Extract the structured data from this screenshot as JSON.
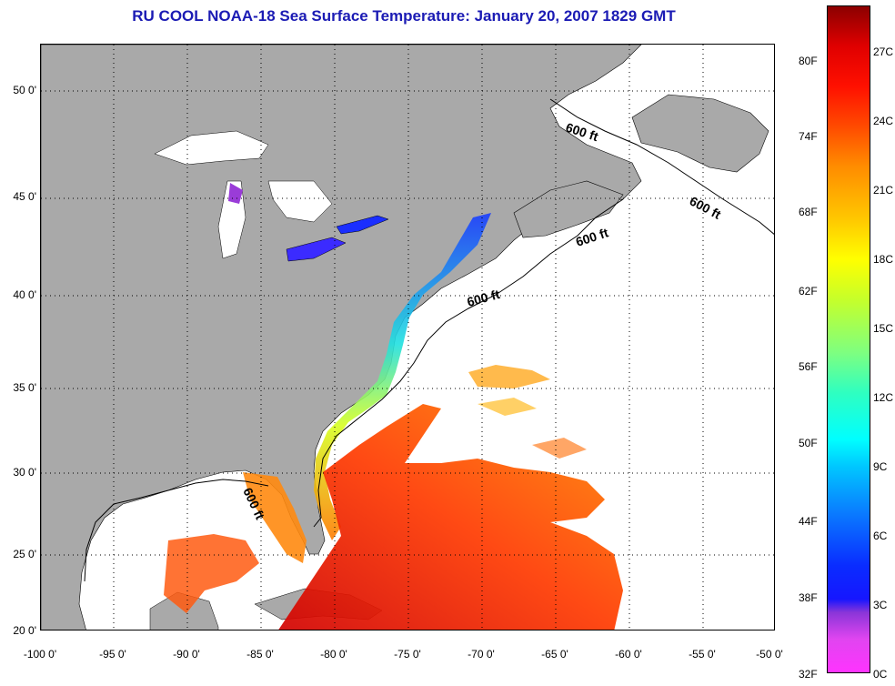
{
  "title": "RU COOL  NOAA-18  Sea Surface Temperature:  January 20, 2007 1829 GMT",
  "lat_labels": [
    "50 0'",
    "45 0'",
    "40 0'",
    "35 0'",
    "30 0'",
    "25 0'",
    "20 0'"
  ],
  "lon_labels": [
    "-100 0'",
    "-95 0'",
    "-90 0'",
    "-85 0'",
    "-80 0'",
    "-75 0'",
    "-70 0'",
    "-65 0'",
    "-60 0'",
    "-55 0'",
    "-50 0'"
  ],
  "contour_label": "600 ft",
  "colorbar": {
    "fahrenheit": [
      "80F",
      "74F",
      "68F",
      "62F",
      "56F",
      "50F",
      "44F",
      "38F",
      "32F"
    ],
    "celsius": [
      "27C",
      "24C",
      "21C",
      "18C",
      "15C",
      "12C",
      "9C",
      "6C",
      "3C",
      "0C"
    ]
  },
  "colors": {
    "land": "#a9a9a9",
    "ocean_cloud": "#ffffff",
    "title": "#1b1bb4"
  }
}
